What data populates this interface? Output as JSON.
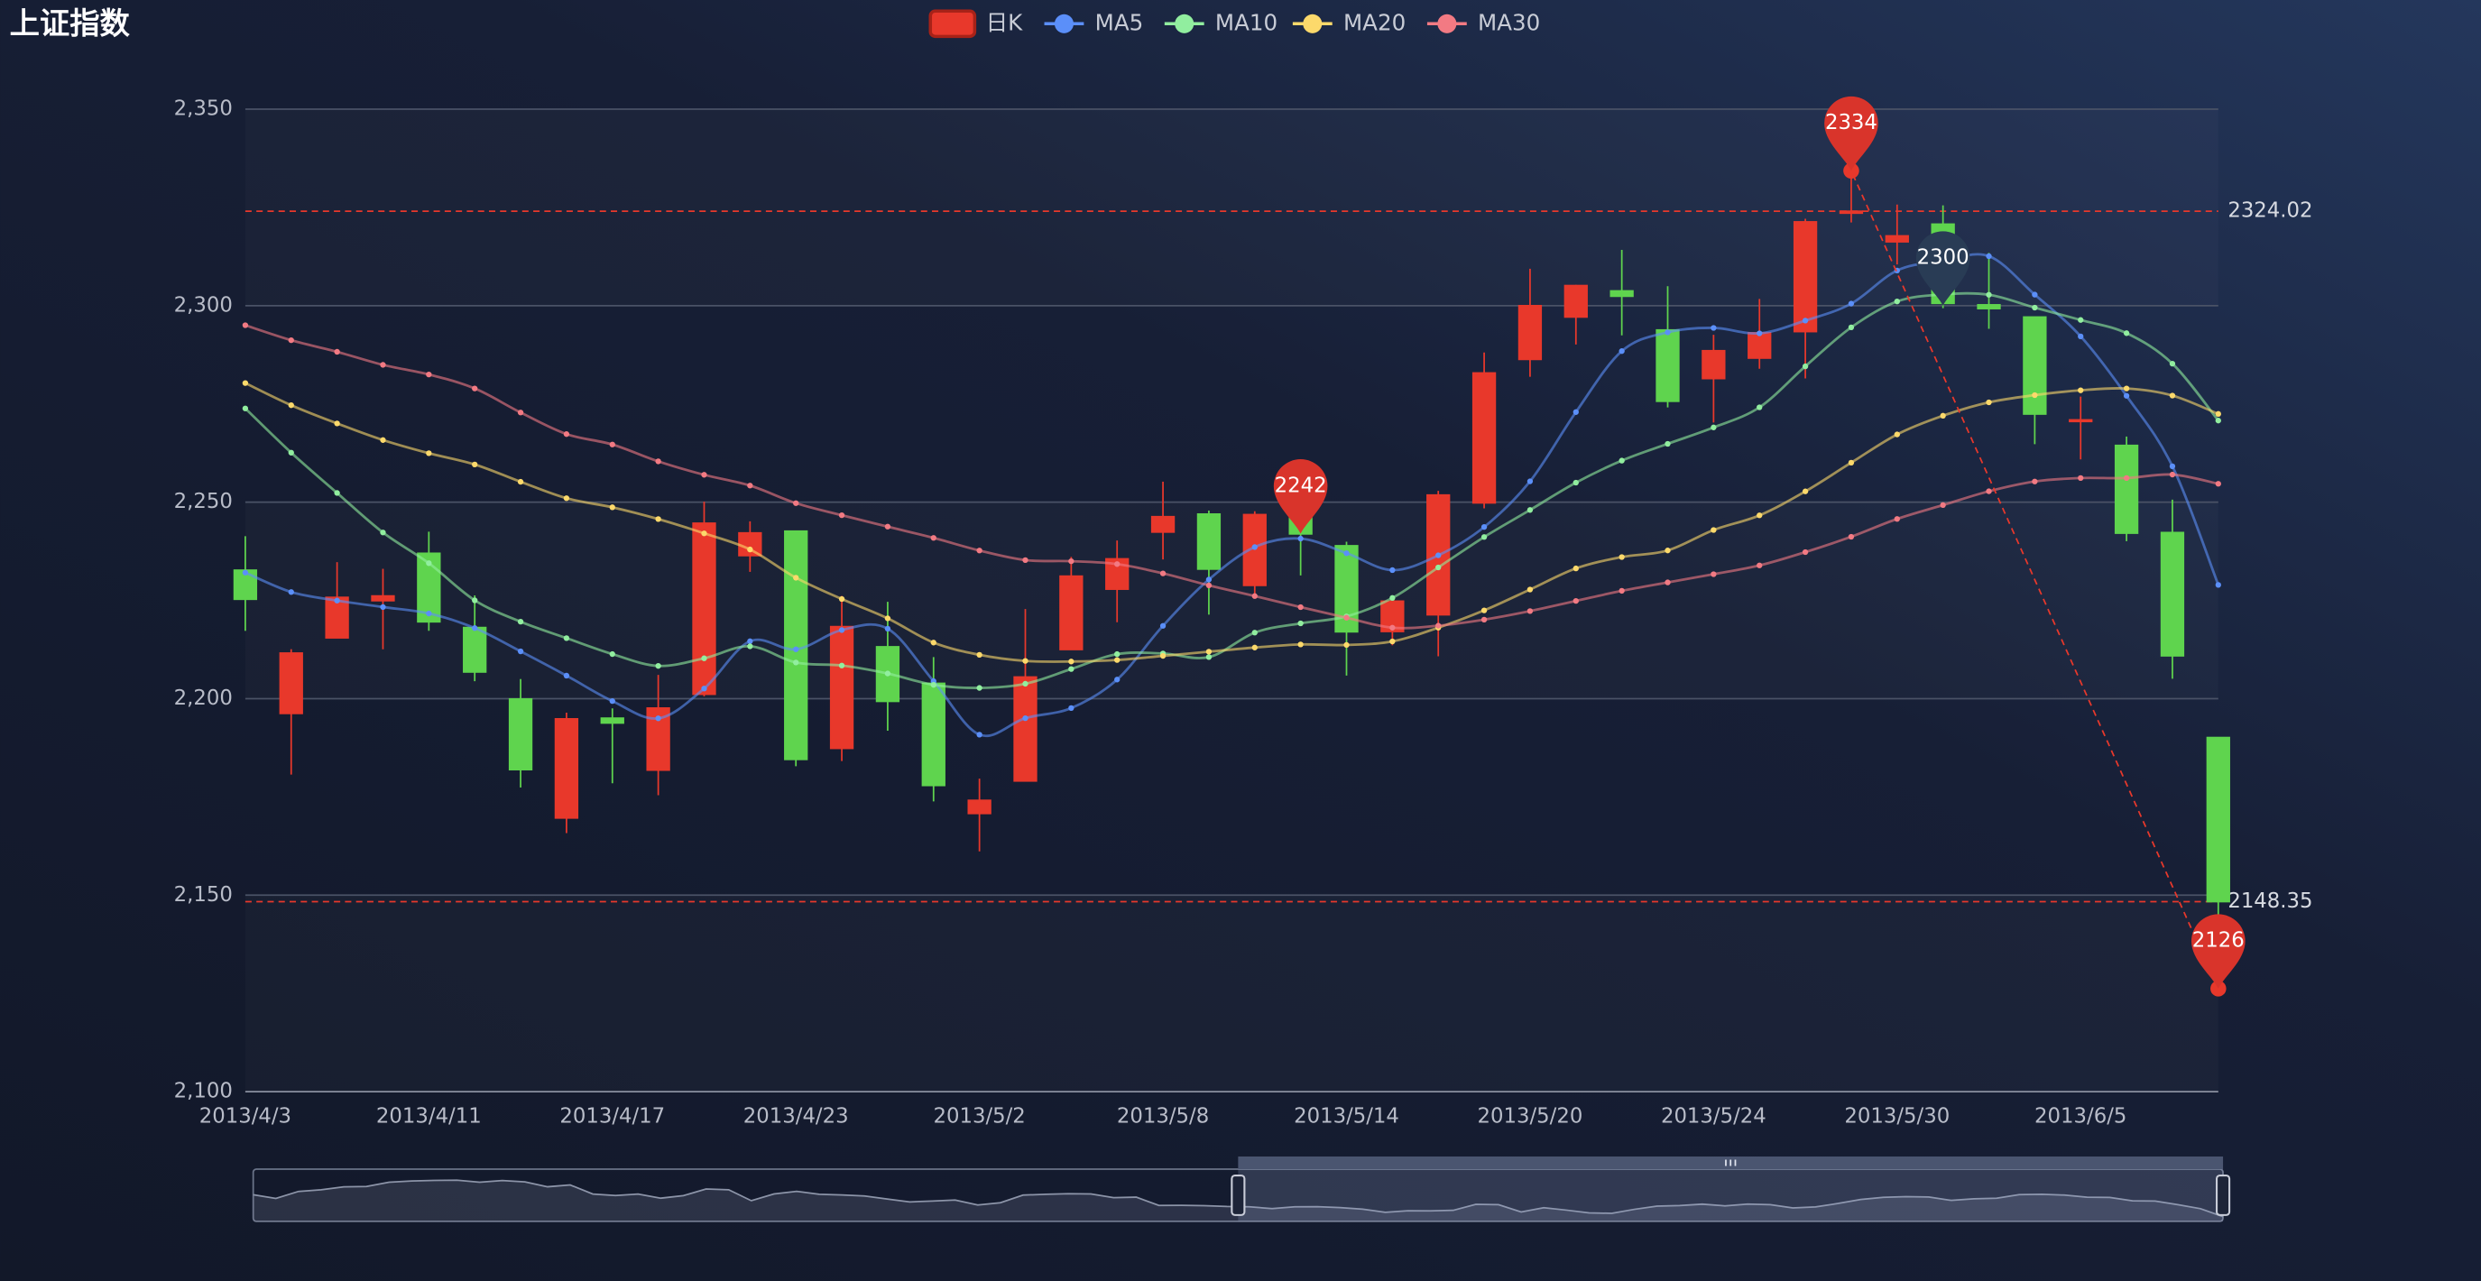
{
  "chart_data": {
    "type": "candlestick",
    "title": "上证指数",
    "categories": [
      "2013/4/3",
      null,
      null,
      null,
      "2013/4/11",
      null,
      null,
      null,
      "2013/4/17",
      null,
      null,
      null,
      "2013/4/23",
      null,
      null,
      null,
      "2013/5/2",
      null,
      null,
      null,
      "2013/5/8",
      null,
      null,
      null,
      "2013/5/14",
      null,
      null,
      null,
      "2013/5/20",
      null,
      null,
      null,
      "2013/5/24",
      null,
      null,
      null,
      "2013/5/30",
      null,
      null,
      null,
      "2013/6/5",
      null,
      null,
      null
    ],
    "series": [
      {
        "name": "日K",
        "type": "candlestick",
        "up_color": "#e8382b",
        "down_color": "#5fd44e",
        "open": [
          2232.69,
          2196.24,
          2215.47,
          2224.93,
          2236.98,
          2218.09,
          2199.91,
          2169.63,
          2195.03,
          2181.82,
          2201.12,
          2236.4,
          2242.62,
          2187.35,
          2213.19,
          2203.89,
          2170.78,
          2179.05,
          2212.5,
          2227.86,
          2242.39,
          2246.96,
          2228.82,
          2247.68,
          2238.9,
          2217.09,
          2221.34,
          2249.81,
          2286.33,
          2297.11,
          2303.75,
          2293.81,
          2281.45,
          2286.66,
          2293.4,
          2323.54,
          2316.25,
          2320.74,
          2300.21,
          2297.1,
          2270.71,
          2264.43,
          2242.26,
          2190.1
        ],
        "close": [
          2225.29,
          2211.59,
          2225.77,
          2226.13,
          2219.55,
          2206.78,
          2181.94,
          2194.85,
          2193.8,
          2197.6,
          2244.64,
          2242.17,
          2184.54,
          2218.32,
          2199.31,
          2177.91,
          2174.12,
          2205.5,
          2231.17,
          2235.57,
          2246.3,
          2232.97,
          2246.83,
          2241.92,
          2217.01,
          2224.8,
          2251.81,
          2282.87,
          2299.99,
          2305.11,
          2302.4,
          2275.67,
          2288.53,
          2293.08,
          2321.32,
          2324.02,
          2317.75,
          2300.59,
          2299.25,
          2272.42,
          2270.93,
          2242.11,
          2210.9,
          2148.35
        ],
        "low": [
          2217.25,
          2180.67,
          2215.47,
          2212.56,
          2217.26,
          2204.44,
          2177.39,
          2165.78,
          2178.47,
          2175.44,
          2200.58,
          2232.26,
          2182.81,
          2184.11,
          2191.85,
          2173.86,
          2161.14,
          2179.05,
          2212.5,
          2219.44,
          2235.42,
          2221.38,
          2225.81,
          2231.36,
          2205.87,
          2213.58,
          2210.77,
          2248.41,
          2281.9,
          2290.12,
          2292.43,
          2274.1,
          2270.25,
          2283.94,
          2281.47,
          2321.17,
          2310.49,
          2299.37,
          2294.11,
          2264.76,
          2260.87,
          2240.07,
          2205.07,
          2126.22
        ],
        "high": [
          2241.34,
          2212.59,
          2234.73,
          2233.04,
          2242.48,
          2226.26,
          2204.99,
          2196.43,
          2197.51,
          2206.03,
          2250.11,
          2245.12,
          2242.62,
          2226.12,
          2224.63,
          2210.58,
          2179.65,
          2222.81,
          2236.07,
          2240.26,
          2255.21,
          2247.86,
          2247.67,
          2250.85,
          2239.93,
          2225.19,
          2252.87,
          2288.09,
          2309.39,
          2305.3,
          2314.18,
          2304.95,
          2292.59,
          2301.7,
          2322.1,
          2334.33,
          2325.72,
          2325.53,
          2313.43,
          2297.1,
          2276.86,
          2266.69,
          2250.63,
          2190.1
        ]
      },
      {
        "name": "MA5",
        "type": "line",
        "color": "#5b8ff9",
        "values": [
          2232.07,
          2227.13,
          2224.96,
          2223.3,
          2221.67,
          2217.96,
          2212.03,
          2205.85,
          2199.38,
          2194.99,
          2202.57,
          2214.61,
          2212.55,
          2217.45,
          2217.8,
          2204.45,
          2190.84,
          2195.03,
          2197.6,
          2204.85,
          2218.53,
          2230.3,
          2238.57,
          2240.72,
          2237.01,
          2232.71,
          2236.47,
          2243.68,
          2255.3,
          2272.92,
          2288.44,
          2293.21,
          2294.34,
          2292.96,
          2296.2,
          2300.52,
          2308.94,
          2311.35,
          2312.59,
          2302.81,
          2292.19,
          2277.06,
          2259.12,
          2228.94
        ]
      },
      {
        "name": "MA10",
        "type": "line",
        "color": "#91ee9f",
        "values": [
          2273.85,
          2262.59,
          2252.34,
          2242.28,
          2234.47,
          2225.02,
          2219.58,
          2215.4,
          2211.34,
          2208.33,
          2210.27,
          2213.32,
          2209.2,
          2208.42,
          2206.4,
          2203.51,
          2202.73,
          2203.79,
          2207.53,
          2211.33,
          2211.49,
          2210.57,
          2216.8,
          2219.16,
          2220.93,
          2225.62,
          2233.39,
          2241.13,
          2248.01,
          2254.96,
          2260.57,
          2264.84,
          2269.01,
          2274.13,
          2284.56,
          2294.48,
          2301.07,
          2302.85,
          2302.77,
          2299.5,
          2296.36,
          2293,
          2285.24,
          2270.76
        ]
      },
      {
        "name": "MA20",
        "type": "line",
        "color": "#fcd96b",
        "values": [
          2280.3,
          2274.67,
          2270.03,
          2265.8,
          2262.45,
          2259.59,
          2255.18,
          2251,
          2248.69,
          2245.7,
          2242.06,
          2237.96,
          2230.77,
          2225.35,
          2220.43,
          2214.26,
          2211.15,
          2209.6,
          2209.44,
          2209.83,
          2210.88,
          2211.95,
          2213,
          2213.79,
          2213.66,
          2214.56,
          2218.06,
          2222.46,
          2227.77,
          2233.14,
          2236.03,
          2237.71,
          2242.91,
          2246.64,
          2252.74,
          2260.05,
          2267.23,
          2271.99,
          2275.39,
          2277.23,
          2278.46,
          2278.92,
          2277.12,
          2272.45
        ]
      },
      {
        "name": "MA30",
        "type": "line",
        "color": "#f27a83",
        "values": [
          2295.02,
          2291.21,
          2288.26,
          2284.94,
          2282.48,
          2278.93,
          2272.81,
          2267.32,
          2264.67,
          2260.38,
          2256.96,
          2254.22,
          2249.75,
          2246.68,
          2243.77,
          2240.9,
          2237.69,
          2235.26,
          2234.97,
          2234.24,
          2231.87,
          2228.83,
          2226.11,
          2223.29,
          2220.6,
          2218.05,
          2218.57,
          2220.11,
          2222.29,
          2224.87,
          2227.44,
          2229.58,
          2231.67,
          2233.9,
          2237.29,
          2241.2,
          2245.73,
          2249.25,
          2252.77,
          2255.26,
          2256.14,
          2256.14,
          2257.02,
          2254.68
        ]
      }
    ],
    "ylim": [
      2100,
      2350
    ],
    "yticks": [
      {
        "value": 2100,
        "label": "2,100"
      },
      {
        "value": 2150,
        "label": "2,150"
      },
      {
        "value": 2200,
        "label": "2,200"
      },
      {
        "value": 2250,
        "label": "2,250"
      },
      {
        "value": 2300,
        "label": "2,300"
      },
      {
        "value": 2350,
        "label": "2,350"
      }
    ],
    "grid": true,
    "mark_lines": [
      {
        "value": 2324.02,
        "color": "#e8382b"
      },
      {
        "value": 2148.35,
        "color": "#e8382b"
      }
    ],
    "trend_line": {
      "color": "#e8382b",
      "from": {
        "x_index": 43,
        "value": 2126.22
      },
      "to": {
        "x_index": 35,
        "value": 2334.33
      }
    },
    "mark_points": [
      {
        "x_index": 35,
        "value": 2334.33,
        "label": "2334",
        "color": "#d9342b"
      },
      {
        "x_index": 43,
        "value": 2126.22,
        "label": "2126",
        "color": "#d9342b"
      },
      {
        "x_index": 23,
        "value": 2242,
        "color": "#d9342b"
      },
      {
        "x_index": 37,
        "value": 2300,
        "color": "#293c55"
      }
    ],
    "dataZoom": {
      "start": 50,
      "end": 100,
      "earlier_closes": [
        2320.26,
        2291.3,
        2346.5,
        2358.98,
        2382.48,
        2385.42,
        2419.02,
        2428.15,
        2433.13,
        2434.48,
        2418.53,
        2432.4,
        2421.56,
        2382.91,
        2397.18,
        2325.95,
        2314.16,
        2325.82,
        2293.34,
        2313.22,
        2365.59,
        2359.51,
        2273.4,
        2326.31,
        2347.18,
        2324.29,
        2318.61,
        2310.59,
        2286.6,
        2263.97,
        2270.28,
        2278.4,
        2240.02,
        2257.43,
        2317.37,
        2324.24,
        2328.28,
        2326.72,
        2297.67,
        2301.26,
        2236.3,
        2236.62,
        2234.4,
        2227.74
      ]
    }
  }
}
